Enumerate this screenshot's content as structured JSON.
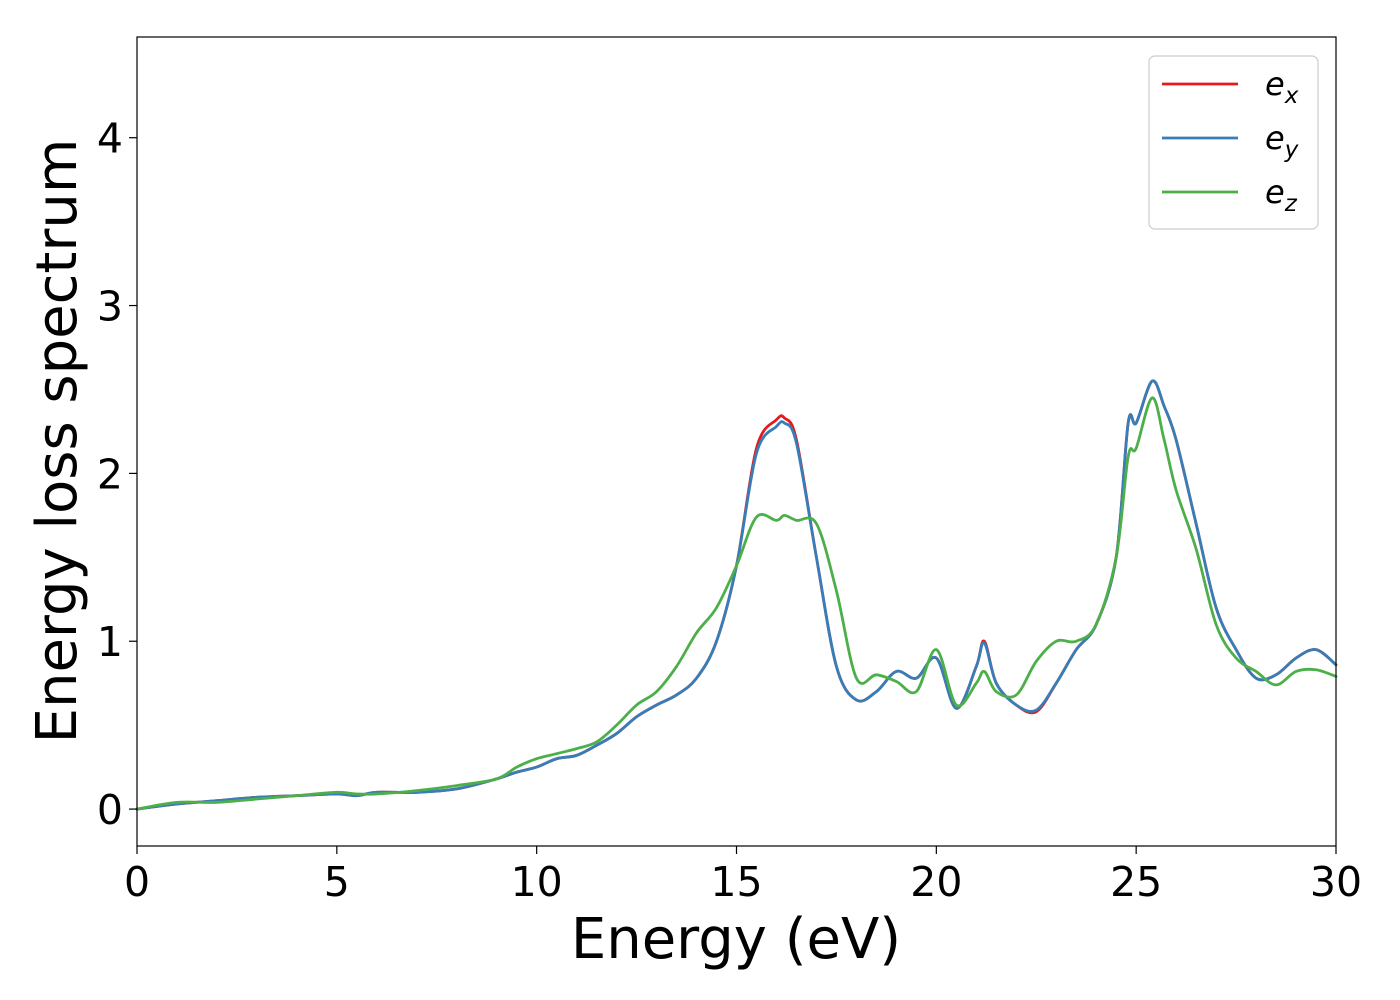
{
  "chart_data": {
    "type": "line",
    "xlabel": "Energy (eV)",
    "ylabel": "Energy loss spectrum",
    "xlim": [
      0,
      30
    ],
    "ylim": [
      -0.22,
      4.6
    ],
    "xticks": [
      0,
      5,
      10,
      15,
      20,
      25,
      30
    ],
    "yticks": [
      0,
      1,
      2,
      3,
      4
    ],
    "xtick_labels": [
      "0",
      "5",
      "10",
      "15",
      "20",
      "25",
      "30"
    ],
    "ytick_labels": [
      "0",
      "1",
      "2",
      "3",
      "4"
    ],
    "grid": false,
    "legend_position": "top-right",
    "legend": [
      {
        "base": "e",
        "sub": "x"
      },
      {
        "base": "e",
        "sub": "y"
      },
      {
        "base": "e",
        "sub": "z"
      }
    ],
    "series": [
      {
        "name": "e_x",
        "color": "#e41a1c",
        "x": [
          0,
          1,
          2,
          3,
          4,
          5,
          5.5,
          6,
          7,
          8,
          9,
          9.5,
          10,
          10.5,
          11,
          11.5,
          12,
          12.5,
          13,
          13.5,
          14,
          14.5,
          15,
          15.5,
          16,
          16.2,
          16.5,
          17,
          17.5,
          18,
          18.5,
          19,
          19.5,
          20,
          20.5,
          21,
          21.2,
          21.5,
          22,
          22.5,
          23,
          23.5,
          24,
          24.5,
          24.8,
          25,
          25.4,
          25.7,
          26,
          26.5,
          27,
          27.5,
          28,
          28.5,
          29,
          29.5,
          30
        ],
        "y": [
          0.0,
          0.03,
          0.05,
          0.07,
          0.08,
          0.09,
          0.08,
          0.1,
          0.1,
          0.12,
          0.18,
          0.22,
          0.25,
          0.3,
          0.32,
          0.38,
          0.45,
          0.55,
          0.62,
          0.68,
          0.78,
          1.0,
          1.45,
          2.15,
          2.32,
          2.33,
          2.2,
          1.5,
          0.85,
          0.65,
          0.7,
          0.82,
          0.78,
          0.9,
          0.6,
          0.85,
          1.0,
          0.75,
          0.62,
          0.58,
          0.75,
          0.95,
          1.1,
          1.5,
          2.3,
          2.3,
          2.55,
          2.4,
          2.2,
          1.7,
          1.2,
          0.95,
          0.78,
          0.8,
          0.9,
          0.95,
          0.86
        ]
      },
      {
        "name": "e_y",
        "color": "#377eb8",
        "x": [
          0,
          1,
          2,
          3,
          4,
          5,
          5.5,
          6,
          7,
          8,
          9,
          9.5,
          10,
          10.5,
          11,
          11.5,
          12,
          12.5,
          13,
          13.5,
          14,
          14.5,
          15,
          15.5,
          16,
          16.2,
          16.5,
          17,
          17.5,
          18,
          18.5,
          19,
          19.5,
          20,
          20.5,
          21,
          21.2,
          21.5,
          22,
          22.5,
          23,
          23.5,
          24,
          24.5,
          24.8,
          25,
          25.4,
          25.7,
          26,
          26.5,
          27,
          27.5,
          28,
          28.5,
          29,
          29.5,
          30
        ],
        "y": [
          0.0,
          0.03,
          0.05,
          0.07,
          0.08,
          0.09,
          0.08,
          0.1,
          0.1,
          0.12,
          0.18,
          0.22,
          0.25,
          0.3,
          0.32,
          0.38,
          0.45,
          0.55,
          0.62,
          0.68,
          0.78,
          1.0,
          1.45,
          2.12,
          2.28,
          2.3,
          2.18,
          1.5,
          0.85,
          0.65,
          0.7,
          0.82,
          0.78,
          0.9,
          0.6,
          0.85,
          0.99,
          0.75,
          0.62,
          0.59,
          0.75,
          0.95,
          1.1,
          1.5,
          2.3,
          2.3,
          2.55,
          2.4,
          2.2,
          1.7,
          1.2,
          0.95,
          0.78,
          0.8,
          0.9,
          0.95,
          0.86
        ]
      },
      {
        "name": "e_z",
        "color": "#4daf4a",
        "x": [
          0,
          1,
          2,
          3,
          4,
          5,
          5.5,
          6,
          7,
          8,
          9,
          9.5,
          10,
          10.5,
          11,
          11.5,
          12,
          12.5,
          13,
          13.5,
          14,
          14.5,
          15,
          15.5,
          16,
          16.2,
          16.5,
          17,
          17.5,
          18,
          18.5,
          19,
          19.5,
          20,
          20.5,
          21,
          21.2,
          21.5,
          22,
          22.5,
          23,
          23.5,
          24,
          24.5,
          24.8,
          25,
          25.4,
          25.7,
          26,
          26.5,
          27,
          27.5,
          28,
          28.5,
          29,
          29.5,
          30
        ],
        "y": [
          0.0,
          0.04,
          0.04,
          0.06,
          0.08,
          0.1,
          0.09,
          0.09,
          0.11,
          0.14,
          0.18,
          0.25,
          0.3,
          0.33,
          0.36,
          0.4,
          0.5,
          0.62,
          0.7,
          0.85,
          1.05,
          1.2,
          1.45,
          1.74,
          1.72,
          1.75,
          1.72,
          1.7,
          1.3,
          0.78,
          0.8,
          0.76,
          0.7,
          0.95,
          0.62,
          0.75,
          0.82,
          0.7,
          0.68,
          0.88,
          1.0,
          1.0,
          1.1,
          1.5,
          2.1,
          2.15,
          2.45,
          2.2,
          1.9,
          1.55,
          1.1,
          0.9,
          0.82,
          0.74,
          0.82,
          0.83,
          0.79
        ]
      }
    ]
  }
}
